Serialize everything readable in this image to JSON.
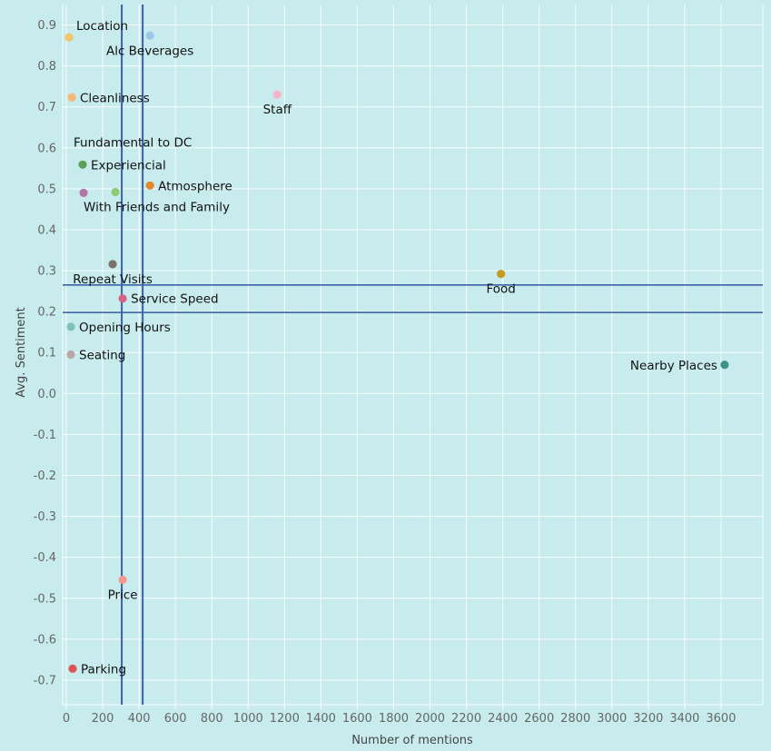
{
  "chart_data": {
    "type": "scatter",
    "title": "",
    "xlabel": "Number of mentions",
    "ylabel": "Avg. Sentiment",
    "xlim": [
      -20,
      3830
    ],
    "ylim": [
      -0.76,
      0.95
    ],
    "x_ticks": [
      0,
      200,
      400,
      600,
      800,
      1000,
      1200,
      1400,
      1600,
      1800,
      2000,
      2200,
      2400,
      2600,
      2800,
      3000,
      3200,
      3400,
      3600
    ],
    "y_ticks": [
      0.9,
      0.8,
      0.7,
      0.6,
      0.5,
      0.4,
      0.3,
      0.2,
      0.1,
      0.0,
      -0.1,
      -0.2,
      -0.3,
      -0.4,
      -0.5,
      -0.6,
      -0.7
    ],
    "x_tick_labels": [
      "0",
      "200",
      "400",
      "600",
      "800",
      "1000",
      "1200",
      "1400",
      "1600",
      "1800",
      "2000",
      "2200",
      "2400",
      "2600",
      "2800",
      "3000",
      "3200",
      "3400",
      "3600"
    ],
    "y_tick_labels": [
      "0.9",
      "0.8",
      "0.7",
      "0.6",
      "0.5",
      "0.4",
      "0.3",
      "0.2",
      "0.1",
      "0.0",
      "-0.1",
      "-0.2",
      "-0.3",
      "-0.4",
      "-0.5",
      "-0.6",
      "-0.7"
    ],
    "grid": true,
    "reference_lines": {
      "vertical_x": [
        305,
        420
      ],
      "horizontal_y": [
        0.265,
        0.198
      ]
    },
    "points": [
      {
        "label": "Location",
        "x": 15,
        "y": 0.87,
        "color": "#f2c46a",
        "label_pos": "above-right"
      },
      {
        "label": "Alc Beverages",
        "x": 460,
        "y": 0.874,
        "color": "#9dc6ea",
        "label_pos": "below"
      },
      {
        "label": "Cleanliness",
        "x": 30,
        "y": 0.723,
        "color": "#f5b87a",
        "label_pos": "right"
      },
      {
        "label": "Staff",
        "x": 1160,
        "y": 0.73,
        "color": "#f5b5c8",
        "label_pos": "below"
      },
      {
        "label": "Fundamental to DC",
        "x": 40,
        "y": 0.614,
        "color": "",
        "label_pos": "none"
      },
      {
        "label": "Experiencial",
        "x": 90,
        "y": 0.559,
        "color": "#5aa156",
        "label_pos": "right"
      },
      {
        "label": "Atmosphere",
        "x": 460,
        "y": 0.508,
        "color": "#e8872a",
        "label_pos": "right"
      },
      {
        "label": "With Friends and Family",
        "x": 95,
        "y": 0.49,
        "color": "#b473a8",
        "label_pos": "below-right"
      },
      {
        "label": "",
        "x": 270,
        "y": 0.492,
        "color": "#8acd72",
        "label_pos": "none"
      },
      {
        "label": "Repeat Visits",
        "x": 255,
        "y": 0.316,
        "color": "#7a716d",
        "label_pos": "below"
      },
      {
        "label": "Food",
        "x": 2390,
        "y": 0.292,
        "color": "#c69a22",
        "label_pos": "below"
      },
      {
        "label": "Service Speed",
        "x": 310,
        "y": 0.232,
        "color": "#d36484",
        "label_pos": "right"
      },
      {
        "label": "Opening Hours",
        "x": 25,
        "y": 0.163,
        "color": "#7fc1b8",
        "label_pos": "right"
      },
      {
        "label": "Seating",
        "x": 25,
        "y": 0.095,
        "color": "#b8a8a4",
        "label_pos": "right"
      },
      {
        "label": "Nearby Places",
        "x": 3620,
        "y": 0.07,
        "color": "#3f928c",
        "label_pos": "left"
      },
      {
        "label": "Price",
        "x": 310,
        "y": -0.455,
        "color": "#f4998c",
        "label_pos": "below"
      },
      {
        "label": "Parking",
        "x": 35,
        "y": -0.672,
        "color": "#de5454",
        "label_pos": "right"
      }
    ]
  },
  "colors": {
    "background": "#c8ecee",
    "grid": "#ffffff",
    "reference_line": "#3a62a4",
    "tick_text": "#666666"
  }
}
